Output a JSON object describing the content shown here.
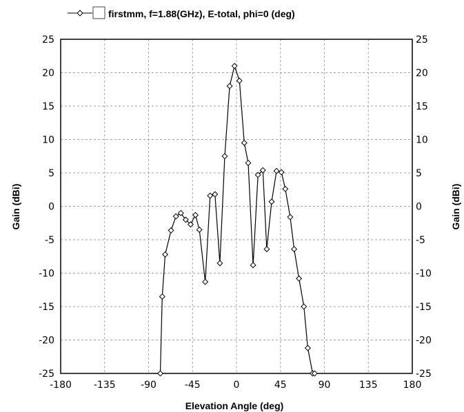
{
  "chart_data": {
    "type": "line",
    "legend": {
      "label": "firstmm, f=1.88(GHz), E-total, phi=0 (deg)",
      "placement": "top",
      "checkbox_checked": false
    },
    "xlabel": "Elevation Angle (deg)",
    "ylabel": "Gain (dBi)",
    "ylabel_right": "Gain (dBi)",
    "xlim": [
      -180,
      180
    ],
    "ylim": [
      -25,
      25
    ],
    "xticks": [
      -180,
      -135,
      -90,
      -45,
      0,
      45,
      90,
      135,
      180
    ],
    "yticks": [
      25,
      20,
      15,
      10,
      5,
      0,
      -5,
      -10,
      -15,
      -20,
      -25
    ],
    "grid": true,
    "series": [
      {
        "name": "firstmm, f=1.88(GHz), E-total, phi=0 (deg)",
        "color": "#000000",
        "marker": "diamond",
        "x": [
          -78,
          -76,
          -73,
          -67,
          -62,
          -57,
          -52,
          -47,
          -42,
          -38,
          -32,
          -27,
          -22,
          -17,
          -12,
          -7,
          -2,
          3,
          8,
          12,
          17,
          22,
          27,
          31,
          36,
          41,
          46,
          50,
          55,
          59,
          64,
          69,
          73,
          78,
          80
        ],
        "y": [
          -25,
          -13.5,
          -7.2,
          -3.6,
          -1.5,
          -1,
          -2,
          -2.7,
          -1.3,
          -3.5,
          -11.3,
          1.6,
          1.8,
          -8.5,
          7.5,
          18,
          21,
          18.8,
          9.5,
          6.5,
          -8.8,
          4.7,
          5.4,
          -6.4,
          0.7,
          5.3,
          5.1,
          2.6,
          -1.6,
          -6.4,
          -10.8,
          -15,
          -21.2,
          -25,
          -25
        ]
      }
    ]
  }
}
